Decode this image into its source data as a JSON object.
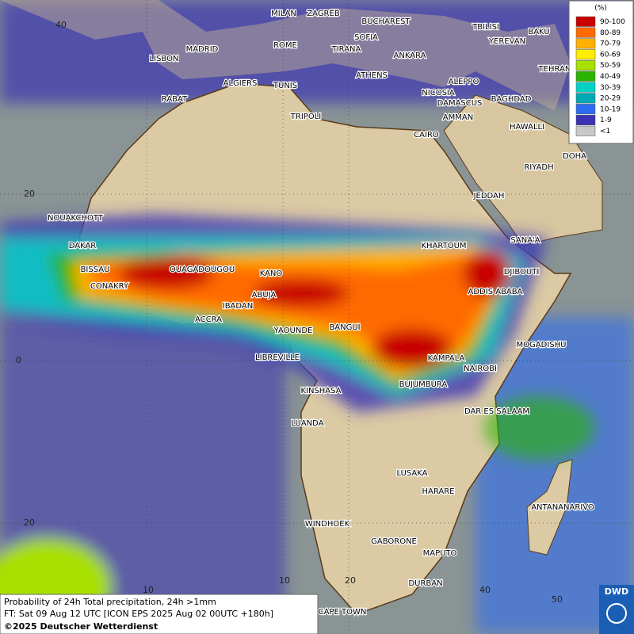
{
  "legend": {
    "title": "(%)",
    "entries": [
      {
        "label": "90-100",
        "color": "#c80000"
      },
      {
        "label": "80-89",
        "color": "#ff6a00"
      },
      {
        "label": "70-79",
        "color": "#ffb000"
      },
      {
        "label": "60-69",
        "color": "#ffee00"
      },
      {
        "label": "50-59",
        "color": "#a8e000"
      },
      {
        "label": "40-49",
        "color": "#28b400"
      },
      {
        "label": "30-39",
        "color": "#00d2c8"
      },
      {
        "label": "20-29",
        "color": "#00aab4"
      },
      {
        "label": "10-19",
        "color": "#2c6cf0"
      },
      {
        "label": "1-9",
        "color": "#3c32b4"
      },
      {
        "label": "<1",
        "color": "#c8c8c8"
      }
    ]
  },
  "cities": [
    "MILAN",
    "ZAGREB",
    "BUCHAREST",
    "TBILISI",
    "BAKU",
    "MADRID",
    "ROME",
    "SOFIA",
    "YEREVAN",
    "LISBON",
    "TIRANA",
    "ANKARA",
    "TEHRAN",
    "ATHENS",
    "ALGIERS",
    "TUNIS",
    "ALEPPO",
    "RABAT",
    "NICOSIA",
    "BAGHDAD",
    "DAMASCUS",
    "AMMAN",
    "TRIPOLI",
    "HAWALLI",
    "CAIRO",
    "DOHA",
    "RIYADH",
    "JEDDAH",
    "NOUAKCHOTT",
    "SANA'A",
    "DAKAR",
    "KHARTOUM",
    "BISSAU",
    "OUAGADOUGOU",
    "KANO",
    "DJIBOUTI",
    "CONAKRY",
    "ABUJA",
    "ADDIS ABABA",
    "IBADAN",
    "ACCRA",
    "YAOUNDE",
    "BANGUI",
    "MOGADISHU",
    "LIBREVILLE",
    "KAMPALA",
    "NAIROBI",
    "BUJUMBURA",
    "KINSHASA",
    "DAR ES SALAAM",
    "LUANDA",
    "LUSAKA",
    "HARARE",
    "ANTANANARIVO",
    "WINDHOEK",
    "GABORONE",
    "MAPUTO",
    "DURBAN",
    "CAPE TOWN"
  ],
  "grid_labels": {
    "lat": [
      "40",
      "20",
      "0",
      "20"
    ],
    "lon": [
      "10",
      "10",
      "20",
      "40",
      "50"
    ]
  },
  "footer": [
    "Probability of 24h Total precipitation, 24h >1mm",
    "FT: Sat 09 Aug 12 UTC [ICON EPS 2025 Aug 02 00UTC +180h]",
    "©2025 Deutscher Wetterdienst"
  ],
  "logo": "DWD"
}
